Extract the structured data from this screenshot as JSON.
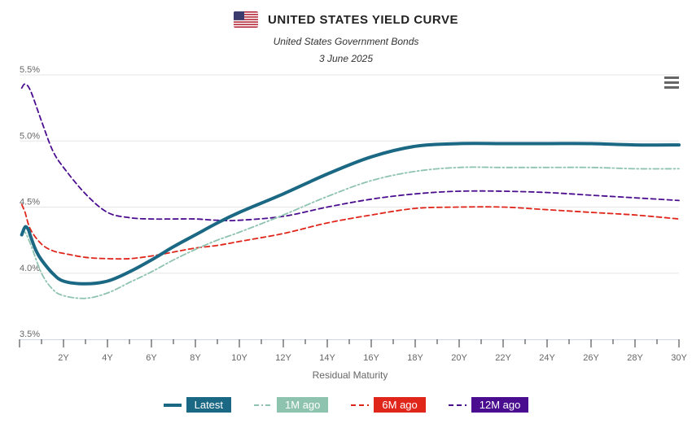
{
  "header": {
    "title": "UNITED STATES YIELD CURVE",
    "subtitle": "United States Government Bonds",
    "date": "3 June 2025",
    "flag_icon": "us-flag-icon"
  },
  "menu": {
    "icon": "hamburger-menu-icon"
  },
  "chart_data": {
    "type": "line",
    "title": "UNITED STATES YIELD CURVE",
    "subtitle": "United States Government Bonds",
    "xlabel": "Residual Maturity",
    "ylabel": "",
    "ylim": [
      3.5,
      5.5
    ],
    "xlim": [
      0,
      30
    ],
    "y_ticks": [
      "3.5%",
      "4.0%",
      "4.5%",
      "5.0%",
      "5.5%"
    ],
    "y_tick_values": [
      3.5,
      4.0,
      4.5,
      5.0,
      5.5
    ],
    "x_ticks": [
      "2Y",
      "4Y",
      "6Y",
      "8Y",
      "10Y",
      "12Y",
      "14Y",
      "16Y",
      "18Y",
      "20Y",
      "22Y",
      "24Y",
      "26Y",
      "28Y",
      "30Y"
    ],
    "x_tick_values": [
      2,
      4,
      6,
      8,
      10,
      12,
      14,
      16,
      18,
      20,
      22,
      24,
      26,
      28,
      30
    ],
    "grid": true,
    "legend_position": "bottom-center",
    "series": [
      {
        "name": "Latest",
        "color": "#1b6884",
        "dash": "solid",
        "x": [
          0.1,
          0.25,
          0.4,
          0.5,
          0.75,
          1,
          1.5,
          2,
          3,
          4,
          5,
          6,
          7,
          8,
          9,
          10,
          12,
          14,
          16,
          18,
          20,
          22,
          24,
          26,
          28,
          30
        ],
        "y": [
          4.29,
          4.35,
          4.33,
          4.28,
          4.17,
          4.1,
          4.0,
          3.94,
          3.92,
          3.94,
          4.01,
          4.1,
          4.2,
          4.29,
          4.38,
          4.46,
          4.6,
          4.75,
          4.88,
          4.96,
          4.98,
          4.98,
          4.98,
          4.98,
          4.97,
          4.97
        ]
      },
      {
        "name": "1M ago",
        "color": "#8ec3b0",
        "dash": "dashdot",
        "x": [
          0.1,
          0.25,
          0.5,
          1,
          1.5,
          2,
          3,
          4,
          5,
          6,
          7,
          8,
          9,
          10,
          12,
          14,
          16,
          18,
          20,
          22,
          24,
          26,
          28,
          30
        ],
        "y": [
          4.3,
          4.31,
          4.22,
          4.0,
          3.88,
          3.83,
          3.81,
          3.85,
          3.93,
          4.01,
          4.1,
          4.18,
          4.25,
          4.31,
          4.44,
          4.58,
          4.7,
          4.77,
          4.8,
          4.8,
          4.8,
          4.8,
          4.79,
          4.79
        ]
      },
      {
        "name": "6M ago",
        "color": "#e0251b",
        "dash": "dashed",
        "x": [
          0.1,
          0.25,
          0.5,
          1,
          1.5,
          2,
          3,
          4,
          5,
          6,
          7,
          8,
          9,
          10,
          12,
          14,
          16,
          18,
          20,
          22,
          24,
          26,
          28,
          30
        ],
        "y": [
          4.52,
          4.46,
          4.33,
          4.22,
          4.17,
          4.15,
          4.12,
          4.11,
          4.11,
          4.13,
          4.16,
          4.19,
          4.21,
          4.24,
          4.3,
          4.38,
          4.44,
          4.49,
          4.5,
          4.5,
          4.48,
          4.46,
          4.44,
          4.41
        ]
      },
      {
        "name": "12M ago",
        "color": "#4b0d8f",
        "dash": "dashed",
        "x": [
          0.1,
          0.25,
          0.5,
          1,
          1.5,
          2,
          3,
          4,
          5,
          6,
          7,
          8,
          9,
          10,
          12,
          14,
          16,
          18,
          20,
          22,
          24,
          26,
          28,
          30
        ],
        "y": [
          5.4,
          5.43,
          5.38,
          5.15,
          4.93,
          4.8,
          4.6,
          4.46,
          4.42,
          4.41,
          4.41,
          4.41,
          4.4,
          4.4,
          4.43,
          4.5,
          4.56,
          4.6,
          4.62,
          4.62,
          4.61,
          4.59,
          4.57,
          4.55
        ]
      }
    ]
  }
}
